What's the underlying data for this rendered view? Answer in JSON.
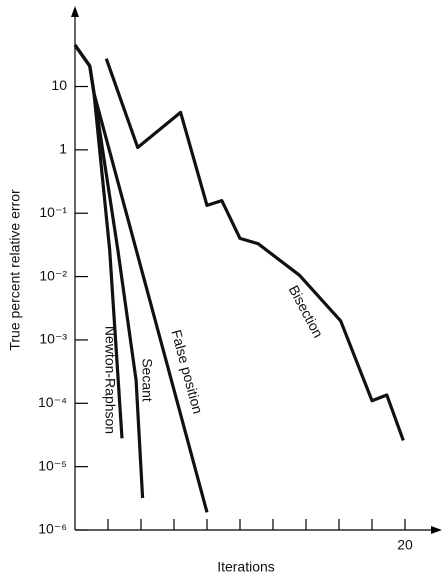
{
  "chart_data": {
    "type": "line",
    "log_y": true,
    "x_label": "Iterations",
    "y_label": "True percent relative error",
    "xlim": [
      0,
      22
    ],
    "xticks": [
      20
    ],
    "x_minor_ticks": [
      2,
      4,
      6,
      8,
      10,
      12,
      14,
      16,
      18
    ],
    "ylim": [
      1e-06,
      150
    ],
    "yticks": [
      10,
      1,
      {
        "value": 0.1,
        "label": "10⁻¹"
      },
      {
        "value": 0.01,
        "label": "10⁻²"
      },
      {
        "value": 0.001,
        "label": "10⁻³"
      },
      {
        "value": 0.0001,
        "label": "10⁻⁴"
      },
      {
        "value": 1e-05,
        "label": "10⁻⁵"
      },
      {
        "value": 1e-06,
        "label": "10⁻⁶"
      }
    ],
    "series": [
      {
        "name": "Bisection",
        "color": "#111111",
        "x": [
          1.9,
          3.8,
          6.4,
          8.0,
          8.9,
          10.0,
          11.1,
          13.6,
          16.1,
          18.0,
          18.9,
          19.9
        ],
        "values": [
          27.5,
          1.09,
          3.9,
          0.133,
          0.158,
          0.04,
          0.033,
          0.0105,
          0.002,
          0.00011,
          0.000135,
          2.6e-05
        ]
      },
      {
        "name": "Newton-Raphson",
        "color": "#111111",
        "x": [
          0,
          0.9,
          1.15,
          2.1,
          2.85
        ],
        "values": [
          45,
          21,
          7.8,
          0.026,
          2.8e-05
        ]
      },
      {
        "name": "Secant",
        "color": "#111111",
        "x": [
          0,
          0.9,
          1.15,
          2.6,
          3.7,
          4.1
        ],
        "values": [
          45,
          21,
          7.8,
          0.026,
          0.00023,
          3.2e-06
        ]
      },
      {
        "name": "False position",
        "color": "#111111",
        "x": [
          0,
          0.9,
          1.15,
          8.0
        ],
        "values": [
          45,
          21,
          7.8,
          1.9e-06
        ]
      }
    ]
  }
}
